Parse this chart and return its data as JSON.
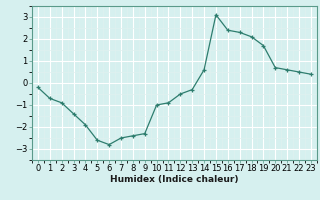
{
  "x": [
    0,
    1,
    2,
    3,
    4,
    5,
    6,
    7,
    8,
    9,
    10,
    11,
    12,
    13,
    14,
    15,
    16,
    17,
    18,
    19,
    20,
    21,
    22,
    23
  ],
  "y": [
    -0.2,
    -0.7,
    -0.9,
    -1.4,
    -1.9,
    -2.6,
    -2.8,
    -2.5,
    -2.4,
    -2.3,
    -1.0,
    -0.9,
    -0.5,
    -0.3,
    0.6,
    3.1,
    2.4,
    2.3,
    2.1,
    1.7,
    0.7,
    0.6,
    0.5,
    0.4
  ],
  "line_color": "#2e7d6e",
  "marker": "+",
  "bg_color": "#d6f0ef",
  "grid_major_color": "#c0dede",
  "grid_minor_color": "#d0e8e8",
  "xlabel": "Humidex (Indice chaleur)",
  "ylim": [
    -3.5,
    3.5
  ],
  "xlim": [
    -0.5,
    23.5
  ],
  "yticks": [
    -3,
    -2,
    -1,
    0,
    1,
    2,
    3
  ],
  "xticks": [
    0,
    1,
    2,
    3,
    4,
    5,
    6,
    7,
    8,
    9,
    10,
    11,
    12,
    13,
    14,
    15,
    16,
    17,
    18,
    19,
    20,
    21,
    22,
    23
  ],
  "label_fontsize": 6.5,
  "tick_fontsize": 6,
  "spine_color": "#5a9a8a"
}
